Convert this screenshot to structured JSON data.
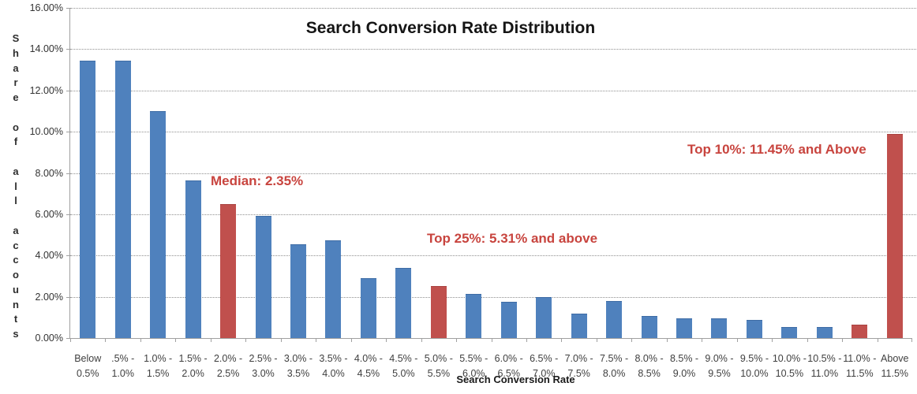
{
  "chart_data": {
    "type": "bar",
    "title": "Search Conversion Rate Distribution",
    "xlabel": "Search Conversion Rate",
    "ylabel": "Share of all accounts",
    "ylim": [
      0,
      16
    ],
    "y_tick_step": 2,
    "y_tick_labels": [
      "0.00%",
      "2.00%",
      "4.00%",
      "6.00%",
      "8.00%",
      "10.00%",
      "12.00%",
      "14.00%",
      "16.00%"
    ],
    "grid": "horizontal-dotted",
    "legend": "none",
    "categories": [
      "Below 0.5%",
      ".5% - 1.0%",
      "1.0% - 1.5%",
      "1.5% - 2.0%",
      "2.0% - 2.5%",
      "2.5% - 3.0%",
      "3.0% - 3.5%",
      "3.5% - 4.0%",
      "4.0% - 4.5%",
      "4.5% - 5.0%",
      "5.0% - 5.5%",
      "5.5% - 6.0%",
      "6.0% - 6.5%",
      "6.5% - 7.0%",
      "7.0% - 7.5%",
      "7.5% - 8.0%",
      "8.0% - 8.5%",
      "8.5% - 9.0%",
      "9.0% - 9.5%",
      "9.5% - 10.0%",
      "10.0% - 10.5%",
      "10.5% - 11.0%",
      "11.0% - 11.5%",
      "Above 11.5%"
    ],
    "category_lines": [
      [
        "Below",
        "0.5%"
      ],
      [
        ".5% -",
        "1.0%"
      ],
      [
        "1.0% -",
        "1.5%"
      ],
      [
        "1.5% -",
        "2.0%"
      ],
      [
        "2.0% -",
        "2.5%"
      ],
      [
        "2.5% -",
        "3.0%"
      ],
      [
        "3.0% -",
        "3.5%"
      ],
      [
        "3.5% -",
        "4.0%"
      ],
      [
        "4.0% -",
        "4.5%"
      ],
      [
        "4.5% -",
        "5.0%"
      ],
      [
        "5.0% -",
        "5.5%"
      ],
      [
        "5.5% -",
        "6.0%"
      ],
      [
        "6.0% -",
        "6.5%"
      ],
      [
        "6.5% -",
        "7.0%"
      ],
      [
        "7.0% -",
        "7.5%"
      ],
      [
        "7.5% -",
        "8.0%"
      ],
      [
        "8.0% -",
        "8.5%"
      ],
      [
        "8.5% -",
        "9.0%"
      ],
      [
        "9.0% -",
        "9.5%"
      ],
      [
        "9.5% -",
        "10.0%"
      ],
      [
        "10.0% -",
        "10.5%"
      ],
      [
        "10.5% -",
        "11.0%"
      ],
      [
        "11.0% -",
        "11.5%"
      ],
      [
        "Above",
        "11.5%"
      ]
    ],
    "values": [
      13.4,
      13.4,
      10.95,
      7.6,
      6.45,
      5.9,
      4.5,
      4.7,
      2.85,
      3.35,
      2.5,
      2.1,
      1.7,
      1.95,
      1.15,
      1.75,
      1.05,
      0.9,
      0.9,
      0.85,
      0.5,
      0.5,
      0.6,
      9.85
    ],
    "highlight_indices": [
      4,
      10,
      22,
      23
    ],
    "annotations": [
      {
        "text": "Median: 2.35%"
      },
      {
        "text": "Top 25%: 5.31% and above"
      },
      {
        "text": "Top 10%: 11.45% and Above"
      }
    ],
    "colors": {
      "bar_default": "#4F81BD",
      "bar_default_border": "#3E6CA5",
      "bar_highlight": "#C0504D",
      "bar_highlight_border": "#A8413F",
      "annotation_text": "#C8443E",
      "gridline": "#8F8F8F",
      "axis_line": "#A0A0A0",
      "tick_label": "#3F3F3F",
      "title": "#151515"
    }
  }
}
